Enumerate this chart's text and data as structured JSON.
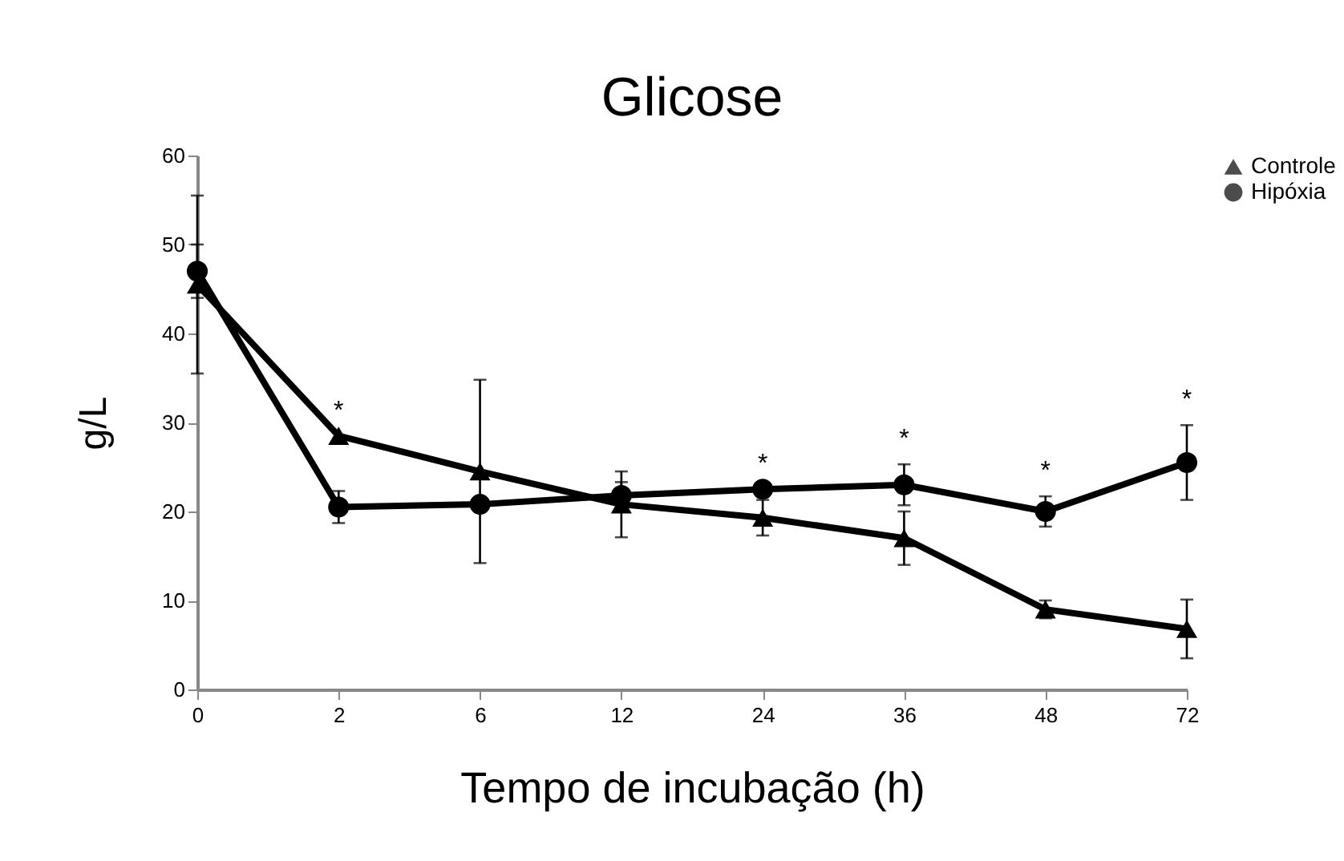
{
  "chart_data": {
    "type": "line",
    "title": "Glicose",
    "xlabel": "Tempo de incubação (h)",
    "ylabel": "g/L",
    "categories": [
      "0",
      "2",
      "6",
      "12",
      "24",
      "36",
      "48",
      "72"
    ],
    "series": [
      {
        "name": "Controle",
        "color": "#000000",
        "marker": "triangle",
        "values": [
          45.5,
          28.5,
          24.5,
          20.8,
          19.3,
          17,
          9,
          6.8
        ],
        "errors": [
          10,
          null,
          10.3,
          3.7,
          2,
          3,
          1,
          3.3
        ]
      },
      {
        "name": "Hipóxia",
        "color": "#000000",
        "marker": "circle",
        "values": [
          47,
          20.5,
          20.8,
          21.8,
          22.5,
          23,
          20,
          25.5
        ],
        "errors": [
          3,
          1.8,
          null,
          1.5,
          null,
          2.3,
          1.7,
          4.2
        ]
      }
    ],
    "ylim": [
      0,
      60
    ],
    "yticks": [
      0,
      10,
      20,
      30,
      40,
      50,
      60
    ],
    "grid": false,
    "legend": "top right",
    "annotations": [
      {
        "text": "*",
        "x": "2",
        "y": 28.5
      },
      {
        "text": "*",
        "x": "24",
        "y": 22.5
      },
      {
        "text": "*",
        "x": "36",
        "y": 23
      },
      {
        "text": "*",
        "x": "48",
        "y": 20
      },
      {
        "text": "*",
        "x": "72",
        "y": 25.5
      }
    ]
  }
}
